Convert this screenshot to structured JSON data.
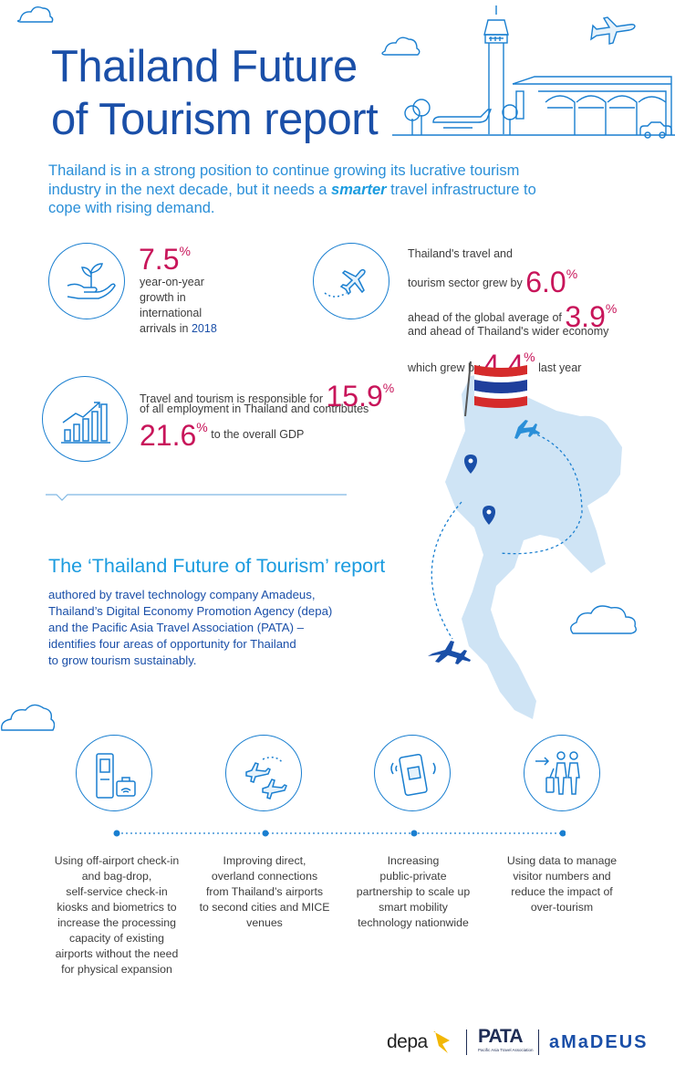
{
  "title": {
    "line1": "Thailand Future",
    "line2": "of Tourism report"
  },
  "intro": {
    "part1": "Thailand is in a strong position to continue growing its lucrative tourism industry in the next decade, but it needs a ",
    "emphasis": "smarter",
    "part2": " travel infrastructure to cope with rising demand."
  },
  "stats": {
    "arrivals": {
      "value": "7.5",
      "unit": "%",
      "text_line1": "year-on-year",
      "text_line2": "growth in",
      "text_line3": "international",
      "text_line4": "arrivals in ",
      "year": "2018",
      "icon": "plant-in-hand-icon"
    },
    "growth": {
      "line1": "Thailand's travel and",
      "line2": "tourism sector grew by",
      "value1": "6.0",
      "unit1": "%",
      "line3": "ahead of the global average of",
      "value2": "3.9",
      "unit2": "%",
      "line4": "and ahead of Thailand's wider economy",
      "line5": "which grew by",
      "value3": "4.4",
      "unit3": "%",
      "line6": "last year",
      "icon": "airplane-icon"
    },
    "employment": {
      "line1": "Travel and tourism is responsible for",
      "value1": "15.9",
      "unit1": "%",
      "line2": "of all employment in Thailand and contributes",
      "value2": "21.6",
      "unit2": "%",
      "line3": "to the overall GDP",
      "icon": "bar-chart-growth-icon"
    }
  },
  "report": {
    "title": "The ‘Thailand Future of Tourism’ report",
    "lines": [
      "authored by travel technology company Amadeus,",
      "Thailand’s Digital Economy Promotion Agency (depa)",
      "and the Pacific Asia Travel Association (PATA) –",
      "identifies four areas of opportunity for Thailand",
      "to grow tourism sustainably."
    ]
  },
  "opportunities": [
    {
      "icon": "check-in-kiosk-icon",
      "lines": [
        "Using off-airport check-in",
        "and bag-drop,",
        "self-service check-in",
        "kiosks and biometrics to",
        "increase the processing",
        "capacity of existing",
        "airports without the need",
        "for physical expansion"
      ]
    },
    {
      "icon": "two-planes-icon",
      "lines": [
        "Improving direct,",
        "overland connections",
        "from Thailand’s airports",
        "to second cities and MICE",
        "venues"
      ]
    },
    {
      "icon": "mobile-boarding-pass-icon",
      "lines": [
        "Increasing",
        "public-private",
        "partnership to scale up",
        "smart mobility",
        "technology nationwide"
      ]
    },
    {
      "icon": "travellers-with-luggage-icon",
      "lines": [
        "Using data to manage",
        "visitor numbers and",
        "reduce the impact of",
        "over-tourism"
      ]
    }
  ],
  "logos": {
    "depa": "depa",
    "pata": "PATA",
    "pata_sub": "Pacific Asia Travel Association",
    "amadeus": "aMaDEUS"
  },
  "colors": {
    "title_blue": "#1a4fa8",
    "accent_blue": "#1a9bdf",
    "stat_magenta": "#c8155a",
    "map_blue": "#cfe4f5"
  }
}
